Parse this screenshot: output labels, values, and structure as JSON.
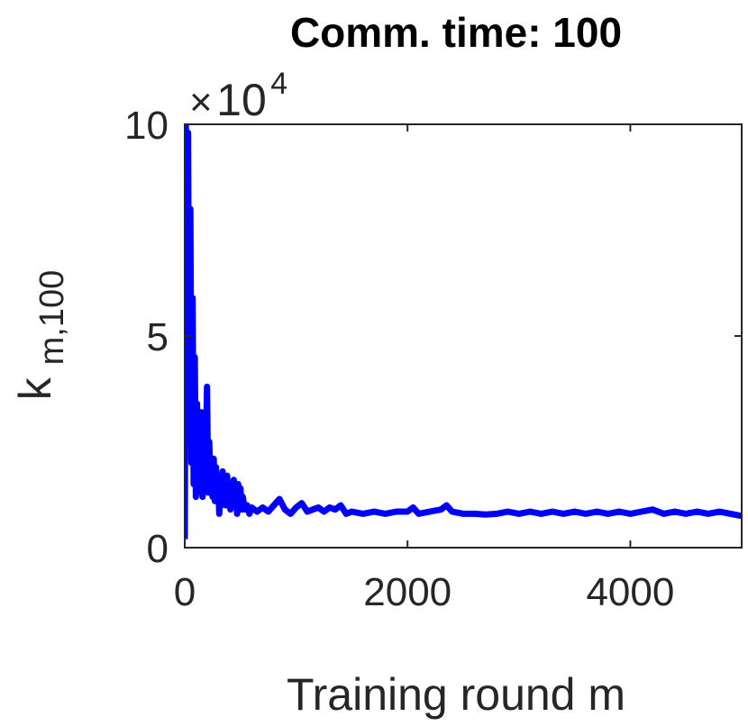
{
  "chart_data": {
    "type": "line",
    "title": "Comm. time: 100",
    "xlabel": "Training round m",
    "ylabel": {
      "base": "k",
      "subscript": "m,100"
    },
    "y_multiplier": {
      "times": "×",
      "base": "10",
      "exponent": "4"
    },
    "xlim": [
      0,
      5000
    ],
    "ylim": [
      0,
      10
    ],
    "x_ticks": [
      0,
      2000,
      4000
    ],
    "x_tick_labels": [
      "0",
      "2000",
      "4000"
    ],
    "y_ticks": [
      0,
      5,
      10
    ],
    "y_tick_labels": [
      "0",
      "5",
      "10"
    ],
    "grid": false,
    "series": [
      {
        "color": "#0000ff",
        "points": [
          [
            0,
            0.2
          ],
          [
            10,
            10
          ],
          [
            20,
            6
          ],
          [
            30,
            9.8
          ],
          [
            40,
            3
          ],
          [
            50,
            8
          ],
          [
            60,
            2
          ],
          [
            70,
            5.9
          ],
          [
            80,
            1.5
          ],
          [
            90,
            4.5
          ],
          [
            100,
            1.2
          ],
          [
            110,
            3.4
          ],
          [
            120,
            1.3
          ],
          [
            130,
            2.8
          ],
          [
            140,
            1.4
          ],
          [
            150,
            3.2
          ],
          [
            160,
            1.2
          ],
          [
            170,
            2.4
          ],
          [
            180,
            1.4
          ],
          [
            190,
            2.0
          ],
          [
            200,
            3.8
          ],
          [
            210,
            1.3
          ],
          [
            220,
            2.5
          ],
          [
            230,
            1.5
          ],
          [
            240,
            2.0
          ],
          [
            250,
            1.2
          ],
          [
            260,
            2.1
          ],
          [
            270,
            1.1
          ],
          [
            280,
            1.9
          ],
          [
            290,
            1.1
          ],
          [
            300,
            1.7
          ],
          [
            310,
            0.8
          ],
          [
            320,
            1.5
          ],
          [
            330,
            1.0
          ],
          [
            340,
            1.8
          ],
          [
            350,
            1.1
          ],
          [
            360,
            1.6
          ],
          [
            370,
            1.0
          ],
          [
            380,
            1.7
          ],
          [
            390,
            1.1
          ],
          [
            400,
            1.5
          ],
          [
            410,
            0.9
          ],
          [
            420,
            1.4
          ],
          [
            430,
            1.0
          ],
          [
            440,
            1.6
          ],
          [
            450,
            1.0
          ],
          [
            460,
            1.3
          ],
          [
            470,
            0.8
          ],
          [
            480,
            1.5
          ],
          [
            490,
            0.9
          ],
          [
            500,
            1.4
          ],
          [
            510,
            0.9
          ],
          [
            520,
            1.2
          ],
          [
            540,
            0.9
          ],
          [
            560,
            1.0
          ],
          [
            580,
            0.8
          ],
          [
            600,
            0.95
          ],
          [
            650,
            0.85
          ],
          [
            700,
            0.95
          ],
          [
            750,
            0.85
          ],
          [
            800,
            1.0
          ],
          [
            850,
            1.15
          ],
          [
            900,
            0.9
          ],
          [
            950,
            0.8
          ],
          [
            1000,
            0.95
          ],
          [
            1050,
            1.05
          ],
          [
            1100,
            0.85
          ],
          [
            1150,
            0.9
          ],
          [
            1200,
            0.95
          ],
          [
            1250,
            0.85
          ],
          [
            1300,
            0.95
          ],
          [
            1350,
            0.9
          ],
          [
            1400,
            1.0
          ],
          [
            1450,
            0.8
          ],
          [
            1500,
            0.85
          ],
          [
            1600,
            0.8
          ],
          [
            1700,
            0.85
          ],
          [
            1800,
            0.8
          ],
          [
            1900,
            0.85
          ],
          [
            2000,
            0.85
          ],
          [
            2050,
            0.95
          ],
          [
            2100,
            0.8
          ],
          [
            2200,
            0.85
          ],
          [
            2300,
            0.9
          ],
          [
            2350,
            1.0
          ],
          [
            2400,
            0.85
          ],
          [
            2500,
            0.8
          ],
          [
            2600,
            0.8
          ],
          [
            2700,
            0.78
          ],
          [
            2800,
            0.8
          ],
          [
            2900,
            0.85
          ],
          [
            3000,
            0.8
          ],
          [
            3100,
            0.85
          ],
          [
            3200,
            0.8
          ],
          [
            3300,
            0.85
          ],
          [
            3400,
            0.8
          ],
          [
            3500,
            0.85
          ],
          [
            3600,
            0.8
          ],
          [
            3700,
            0.85
          ],
          [
            3800,
            0.8
          ],
          [
            3900,
            0.85
          ],
          [
            4000,
            0.8
          ],
          [
            4100,
            0.85
          ],
          [
            4200,
            0.9
          ],
          [
            4300,
            0.8
          ],
          [
            4400,
            0.85
          ],
          [
            4500,
            0.8
          ],
          [
            4600,
            0.85
          ],
          [
            4700,
            0.8
          ],
          [
            4800,
            0.85
          ],
          [
            4900,
            0.8
          ],
          [
            5000,
            0.75
          ]
        ]
      }
    ]
  }
}
